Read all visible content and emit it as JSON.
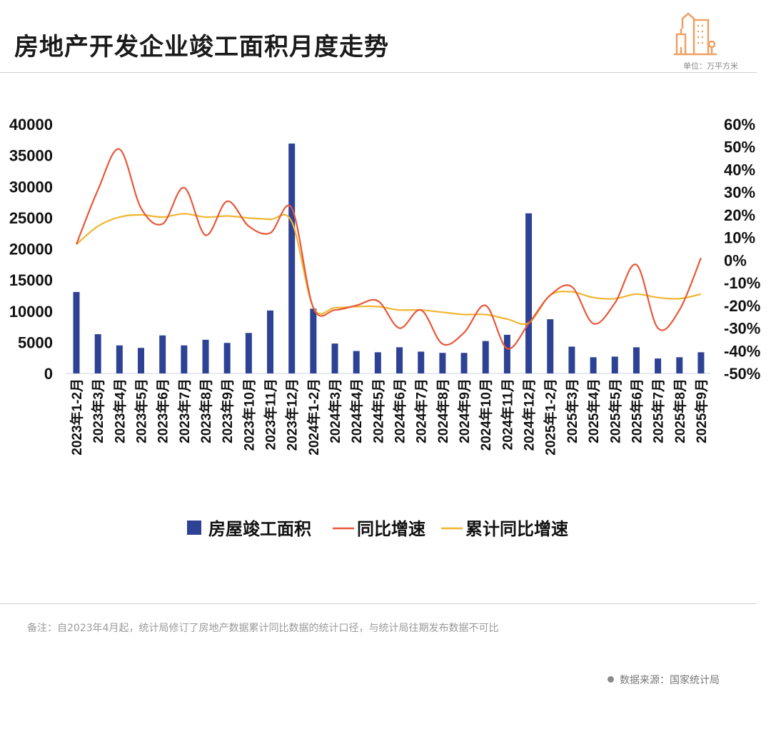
{
  "header": {
    "title": "房地产开发企业竣工面积月度走势",
    "unit": "单位：万平方米"
  },
  "footer": {
    "note": "备注：自2023年4月起，统计局修订了房地产数据累计同比数据的统计口径，与统计局往期发布数据不可比",
    "source": "数据来源：国家统计局"
  },
  "colors": {
    "bar": "#2e4295",
    "yoy": "#e8573a",
    "cum": "#f0b530",
    "logo": "#eea063"
  },
  "icons": {
    "logo": "buildings-icon"
  },
  "chart_data": {
    "type": "bar+line",
    "categories": [
      "2023年1-2月",
      "2023年3月",
      "2023年4月",
      "2023年5月",
      "2023年6月",
      "2023年7月",
      "2023年8月",
      "2023年9月",
      "2023年10月",
      "2023年11月",
      "2023年12月",
      "2024年1-2月",
      "2024年3月",
      "2024年4月",
      "2024年5月",
      "2024年6月",
      "2024年7月",
      "2024年8月",
      "2024年9月",
      "2024年10月",
      "2024年11月",
      "2024年12月",
      "2025年1-2月",
      "2025年3月",
      "2025年4月",
      "2025年5月",
      "2025年6月",
      "2025年7月",
      "2025年8月",
      "2025年9月"
    ],
    "y_left": {
      "range": [
        0,
        40000
      ],
      "ticks": [
        "0",
        "5000",
        "10000",
        "15000",
        "20000",
        "25000",
        "30000",
        "35000",
        "40000"
      ]
    },
    "y_right": {
      "range": [
        -50,
        60
      ],
      "unit": "%",
      "ticks": [
        "-50%",
        "-40%",
        "-30%",
        "-20%",
        "-10%",
        "0%",
        "10%",
        "20%",
        "30%",
        "40%",
        "50%",
        "60%"
      ]
    },
    "grid": false,
    "legend_position": "bottom",
    "series": [
      {
        "name": "房屋竣工面积",
        "type": "bar",
        "axis": "left",
        "values": [
          13070,
          6300,
          4500,
          4100,
          6100,
          4500,
          5400,
          4900,
          6500,
          10100,
          36900,
          10400,
          4800,
          3600,
          3400,
          4200,
          3500,
          3300,
          3300,
          5200,
          6200,
          25700,
          8700,
          4300,
          2600,
          2700,
          4200,
          2400,
          2600,
          3400
        ]
      },
      {
        "name": "同比增速",
        "type": "line",
        "axis": "right",
        "values": [
          7,
          31,
          49,
          23,
          16,
          32,
          11,
          26,
          15,
          12,
          23,
          -21,
          -22,
          -20,
          -18,
          -30,
          -22,
          -37,
          -32,
          -20,
          -39,
          -28,
          -15.5,
          -11.7,
          -28,
          -19,
          -2,
          -30,
          -22,
          1
        ]
      },
      {
        "name": "累计同比增速",
        "type": "line",
        "axis": "right",
        "values": [
          7,
          15,
          19,
          20,
          19,
          20.5,
          19,
          19.5,
          18.6,
          18,
          17,
          -20.8,
          -21,
          -20.5,
          -20.5,
          -22,
          -22,
          -23,
          -24,
          -24,
          -26,
          -27.7,
          -15.5,
          -14,
          -16.5,
          -17,
          -15,
          -16.5,
          -17,
          -15
        ]
      }
    ]
  }
}
